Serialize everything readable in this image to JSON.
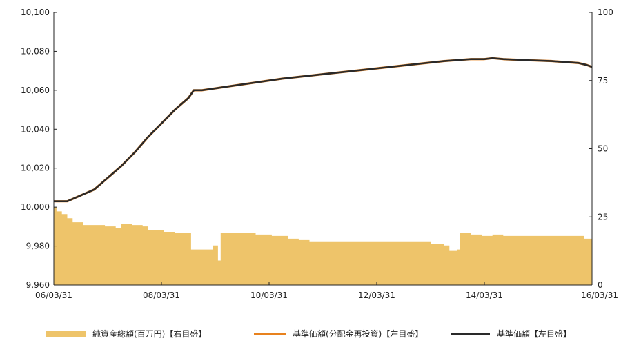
{
  "chart_data": {
    "type": "bar+line",
    "title": "",
    "x_ticks": [
      "06/03/31",
      "08/03/31",
      "10/03/31",
      "12/03/31",
      "14/03/31",
      "16/03/31"
    ],
    "y_left": {
      "min": 9960,
      "max": 10100,
      "ticks": [
        "9,960",
        "9,980",
        "10,000",
        "10,020",
        "10,040",
        "10,060",
        "10,080",
        "10,100"
      ]
    },
    "y_right": {
      "min": 0,
      "max": 100,
      "ticks": [
        "0",
        "25",
        "50",
        "75",
        "100"
      ]
    },
    "grid": false,
    "legend_position": "bottom",
    "series": [
      {
        "name": "純資産総額(百万円)【右目盛】",
        "kind": "area",
        "axis": "right",
        "color": "#eec46a",
        "points": [
          [
            2006.25,
            28.5
          ],
          [
            2006.3,
            27
          ],
          [
            2006.4,
            26
          ],
          [
            2006.5,
            24.5
          ],
          [
            2006.6,
            23
          ],
          [
            2006.8,
            22
          ],
          [
            2007.0,
            22
          ],
          [
            2007.2,
            21.5
          ],
          [
            2007.4,
            21
          ],
          [
            2007.5,
            22.5
          ],
          [
            2007.7,
            22
          ],
          [
            2007.9,
            21.5
          ],
          [
            2008.0,
            20
          ],
          [
            2008.1,
            20
          ],
          [
            2008.3,
            19.5
          ],
          [
            2008.5,
            19
          ],
          [
            2008.75,
            19
          ],
          [
            2008.8,
            13
          ],
          [
            2009.1,
            13
          ],
          [
            2009.2,
            14.5
          ],
          [
            2009.3,
            9
          ],
          [
            2009.35,
            19
          ],
          [
            2009.6,
            19
          ],
          [
            2009.9,
            19
          ],
          [
            2010.0,
            18.5
          ],
          [
            2010.3,
            18
          ],
          [
            2010.5,
            18
          ],
          [
            2010.6,
            17
          ],
          [
            2010.75,
            17
          ],
          [
            2010.8,
            16.5
          ],
          [
            2011.0,
            16
          ],
          [
            2011.5,
            16
          ],
          [
            2012.0,
            16
          ],
          [
            2012.5,
            16
          ],
          [
            2013.0,
            16
          ],
          [
            2013.2,
            16
          ],
          [
            2013.25,
            15
          ],
          [
            2013.5,
            14.5
          ],
          [
            2013.6,
            12.5
          ],
          [
            2013.75,
            13
          ],
          [
            2013.8,
            19
          ],
          [
            2014.0,
            18.5
          ],
          [
            2014.2,
            18
          ],
          [
            2014.4,
            18.5
          ],
          [
            2014.6,
            18
          ],
          [
            2015.0,
            18
          ],
          [
            2015.5,
            18
          ],
          [
            2016.0,
            18
          ],
          [
            2016.1,
            17
          ],
          [
            2016.25,
            17
          ]
        ]
      },
      {
        "name": "基準価額(分配金再投資)【左目盛】",
        "kind": "line",
        "axis": "left",
        "color": "#e8821e",
        "points": [
          [
            2006.25,
            10003
          ],
          [
            2006.5,
            10003
          ],
          [
            2006.75,
            10006
          ],
          [
            2007.0,
            10009
          ],
          [
            2007.25,
            10015
          ],
          [
            2007.5,
            10021
          ],
          [
            2007.75,
            10028
          ],
          [
            2008.0,
            10036
          ],
          [
            2008.25,
            10043
          ],
          [
            2008.5,
            10050
          ],
          [
            2008.75,
            10056
          ],
          [
            2008.85,
            10060
          ],
          [
            2009.0,
            10060
          ],
          [
            2009.25,
            10061
          ],
          [
            2009.5,
            10062
          ],
          [
            2009.75,
            10063
          ],
          [
            2010.0,
            10064
          ],
          [
            2010.5,
            10066
          ],
          [
            2011.0,
            10067.5
          ],
          [
            2011.5,
            10069
          ],
          [
            2012.0,
            10070.5
          ],
          [
            2012.5,
            10072
          ],
          [
            2013.0,
            10073.5
          ],
          [
            2013.5,
            10075
          ],
          [
            2014.0,
            10076
          ],
          [
            2014.25,
            10076
          ],
          [
            2014.4,
            10076.5
          ],
          [
            2014.6,
            10076
          ],
          [
            2015.0,
            10075.5
          ],
          [
            2015.5,
            10075
          ],
          [
            2016.0,
            10074
          ],
          [
            2016.15,
            10073
          ],
          [
            2016.25,
            10072
          ]
        ]
      },
      {
        "name": "基準価額【左目盛】",
        "kind": "line",
        "axis": "left",
        "color": "#2a2a2a",
        "points": [
          [
            2006.25,
            10003
          ],
          [
            2006.5,
            10003
          ],
          [
            2006.75,
            10006
          ],
          [
            2007.0,
            10009
          ],
          [
            2007.25,
            10015
          ],
          [
            2007.5,
            10021
          ],
          [
            2007.75,
            10028
          ],
          [
            2008.0,
            10036
          ],
          [
            2008.25,
            10043
          ],
          [
            2008.5,
            10050
          ],
          [
            2008.75,
            10056
          ],
          [
            2008.85,
            10060
          ],
          [
            2009.0,
            10060
          ],
          [
            2009.25,
            10061
          ],
          [
            2009.5,
            10062
          ],
          [
            2009.75,
            10063
          ],
          [
            2010.0,
            10064
          ],
          [
            2010.5,
            10066
          ],
          [
            2011.0,
            10067.5
          ],
          [
            2011.5,
            10069
          ],
          [
            2012.0,
            10070.5
          ],
          [
            2012.5,
            10072
          ],
          [
            2013.0,
            10073.5
          ],
          [
            2013.5,
            10075
          ],
          [
            2014.0,
            10076
          ],
          [
            2014.25,
            10076
          ],
          [
            2014.4,
            10076.5
          ],
          [
            2014.6,
            10076
          ],
          [
            2015.0,
            10075.5
          ],
          [
            2015.5,
            10075
          ],
          [
            2016.0,
            10074
          ],
          [
            2016.15,
            10073
          ],
          [
            2016.25,
            10072
          ]
        ]
      }
    ]
  }
}
